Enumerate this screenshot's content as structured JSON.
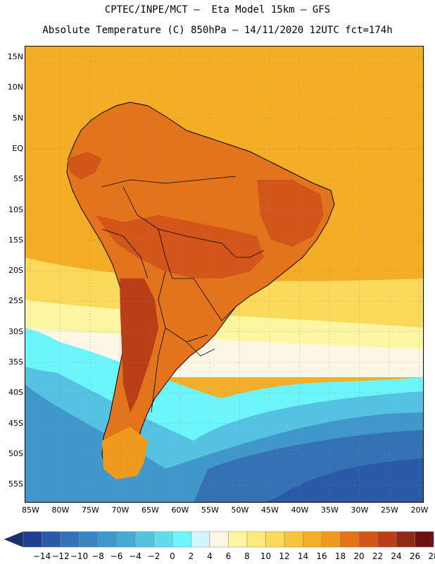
{
  "title_line1": "CPTEC/INPE/MCT –  Eta Model 15km – GFS",
  "title_line2": "Absolute Temperature (C) 850hPa – 14/11/2020 12UTC fct=174h",
  "lat_labels": [
    "15N",
    "10N",
    "5N",
    "EQ",
    "5S",
    "10S",
    "15S",
    "20S",
    "25S",
    "30S",
    "35S",
    "40S",
    "45S",
    "50S",
    "55S"
  ],
  "lon_labels": [
    "85W",
    "80W",
    "75W",
    "70W",
    "65W",
    "60W",
    "55W",
    "50W",
    "45W",
    "40W",
    "35W",
    "30W",
    "25W",
    "20W"
  ],
  "colorbar": {
    "labels": [
      "-14",
      "-12",
      "-10",
      "-8",
      "-6",
      "-4",
      "-2",
      "0",
      "2",
      "4",
      "6",
      "8",
      "10",
      "12",
      "14",
      "16",
      "18",
      "20",
      "22",
      "24",
      "26",
      "28"
    ],
    "colors": [
      "#1f3f8f",
      "#2a5aa5",
      "#3472b5",
      "#3a85c0",
      "#3f97ca",
      "#47aad5",
      "#55c2e2",
      "#62dbee",
      "#6cf5fb",
      "#d4f5fb",
      "#fdf8e6",
      "#fdf6a3",
      "#fde97c",
      "#fbd95b",
      "#f6c53c",
      "#f2b02a",
      "#ee9a1d",
      "#e3741b",
      "#d25619",
      "#bb3f16",
      "#8f2a16",
      "#6b1212"
    ],
    "left_arrow_color": "#1a2f6e",
    "right_arrow_color": "#7a0020"
  },
  "colors": {
    "ocean_warm": "#f3ae26",
    "land_hot": "#cf6a21",
    "cold_sea": "#47aad5",
    "coldest_sea": "#2a5aa5"
  }
}
